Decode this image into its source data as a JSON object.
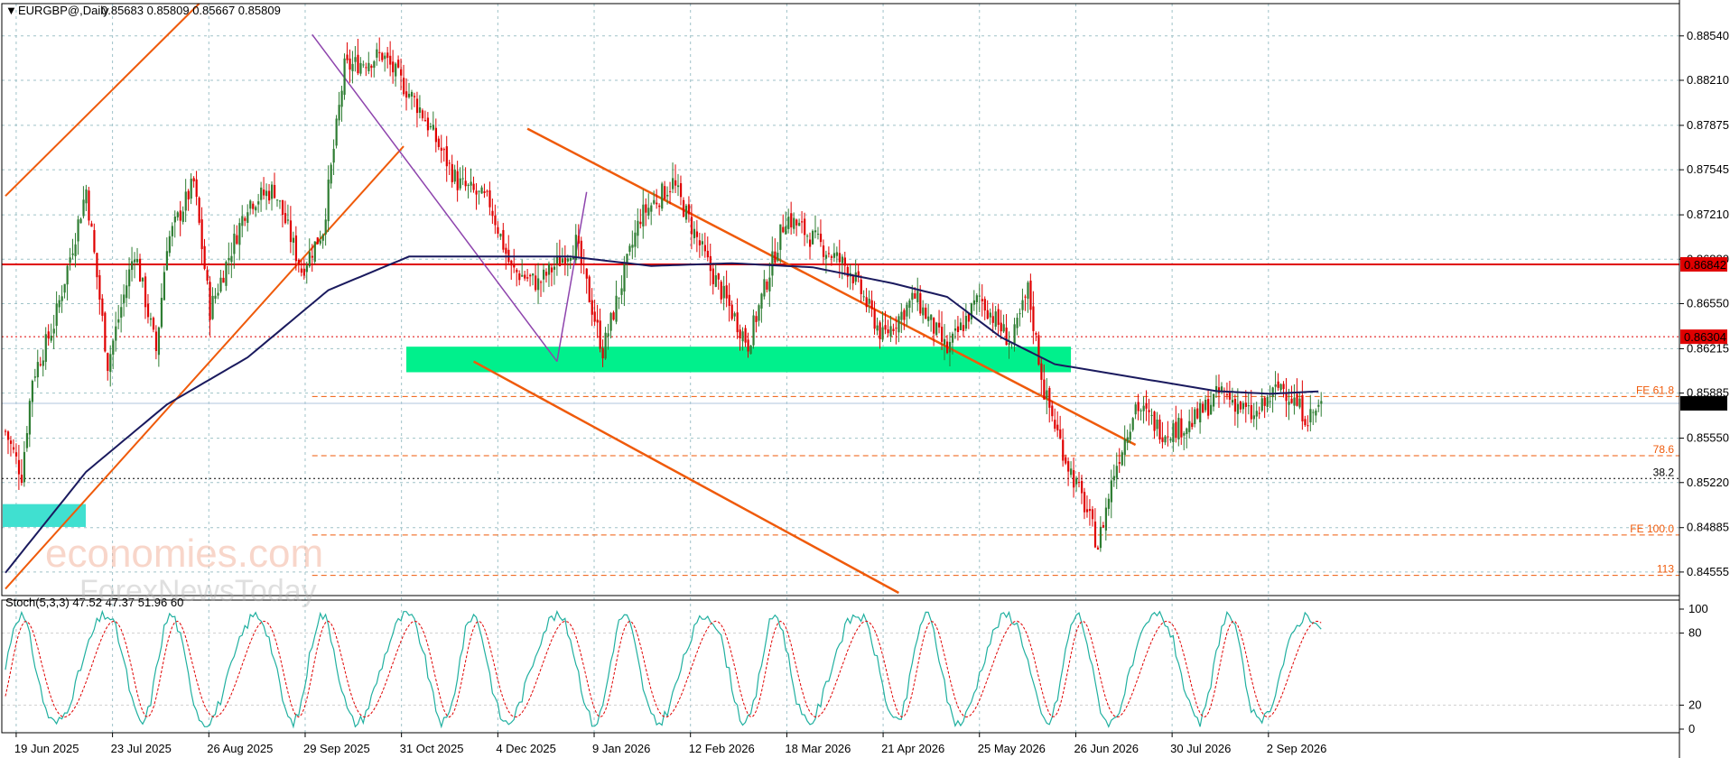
{
  "header": {
    "symbol": "EURGBP@,Daily",
    "ohlc": "0.85683 0.85809 0.85667 0.85809",
    "indicator": "Stoch(5,3,3) 47.52 47.37 51.96 60"
  },
  "watermark": {
    "brand": "economies.com",
    "sub": "ForexNewsToday"
  },
  "colors": {
    "bull": "#2e7d32",
    "bear": "#e00000",
    "ma": "#1a1a5e",
    "channel": "#ef5a0a",
    "purple": "#8e44ad",
    "zone": "#00f08c",
    "zone_left": "#40e0d0",
    "resistance": "#e00000",
    "fib": "#ef5a0a",
    "grid": "#9fc2c8",
    "stoch_main": "#20b0a0",
    "stoch_signal": "#e00000"
  },
  "chart_data": [
    {
      "type": "candlestick",
      "title": "EURGBP@,Daily",
      "ylim": [
        0.8438,
        0.8878
      ],
      "y_ticks": [
        "0.88540",
        "0.88210",
        "0.87875",
        "0.87545",
        "0.87210",
        "0.86880",
        "0.86550",
        "0.86215",
        "0.85885",
        "0.85550",
        "0.85220",
        "0.84885",
        "0.84555"
      ],
      "x_ticks": [
        "19 Jun 2025",
        "23 Jul 2025",
        "26 Aug 2025",
        "29 Sep 2025",
        "31 Oct 2025",
        "4 Dec 2025",
        "9 Jan 2026",
        "12 Feb 2026",
        "18 Mar 2026",
        "21 Apr 2026",
        "25 May 2026",
        "26 Jun 2026",
        "30 Jul 2026",
        "2 Sep 2026"
      ],
      "series": [
        {
          "name": "Close",
          "anchors": [
            [
              0,
              0.856
            ],
            [
              6,
              0.8528
            ],
            [
              10,
              0.86
            ],
            [
              18,
              0.864
            ],
            [
              30,
              0.874
            ],
            [
              38,
              0.861
            ],
            [
              48,
              0.8695
            ],
            [
              56,
              0.862
            ],
            [
              60,
              0.87
            ],
            [
              70,
              0.8745
            ],
            [
              76,
              0.865
            ],
            [
              90,
              0.873
            ],
            [
              100,
              0.874
            ],
            [
              110,
              0.868
            ],
            [
              118,
              0.871
            ],
            [
              126,
              0.883
            ],
            [
              140,
              0.884
            ],
            [
              154,
              0.88
            ],
            [
              168,
              0.8745
            ],
            [
              180,
              0.873
            ],
            [
              188,
              0.868
            ],
            [
              198,
              0.867
            ],
            [
              212,
              0.87
            ],
            [
              222,
              0.862
            ],
            [
              236,
              0.872
            ],
            [
              248,
              0.8745
            ],
            [
              262,
              0.868
            ],
            [
              276,
              0.8625
            ],
            [
              290,
              0.872
            ],
            [
              302,
              0.87
            ],
            [
              314,
              0.868
            ],
            [
              326,
              0.863
            ],
            [
              338,
              0.866
            ],
            [
              350,
              0.862
            ],
            [
              362,
              0.866
            ],
            [
              374,
              0.8625
            ],
            [
              380,
              0.8665
            ],
            [
              386,
              0.859
            ],
            [
              394,
              0.854
            ],
            [
              402,
              0.85
            ],
            [
              406,
              0.8475
            ],
            [
              412,
              0.853
            ],
            [
              420,
              0.858
            ],
            [
              430,
              0.856
            ],
            [
              440,
              0.8565
            ],
            [
              452,
              0.859
            ],
            [
              464,
              0.857
            ],
            [
              474,
              0.8595
            ],
            [
              484,
              0.857
            ],
            [
              490,
              0.8581
            ]
          ]
        },
        {
          "name": "MA",
          "anchors": [
            [
              0,
              0.8455
            ],
            [
              30,
              0.853
            ],
            [
              60,
              0.858
            ],
            [
              90,
              0.8615
            ],
            [
              120,
              0.8665
            ],
            [
              150,
              0.869
            ],
            [
              180,
              0.869
            ],
            [
              210,
              0.869
            ],
            [
              240,
              0.8683
            ],
            [
              270,
              0.8685
            ],
            [
              300,
              0.8682
            ],
            [
              330,
              0.867
            ],
            [
              350,
              0.866
            ],
            [
              370,
              0.863
            ],
            [
              390,
              0.861
            ],
            [
              420,
              0.86
            ],
            [
              450,
              0.859
            ],
            [
              470,
              0.8588
            ],
            [
              490,
              0.859
            ]
          ]
        }
      ],
      "levels": {
        "resistance": 0.86842,
        "dotted_red": 0.86304,
        "last_price": 0.85809,
        "dotted_black": 0.8525
      },
      "fib_labels": [
        {
          "label": "FE 61.8",
          "value": 0.8586
        },
        {
          "label": "78.6",
          "value": 0.8542
        },
        {
          "label": "38.2",
          "value": 0.8525
        },
        {
          "label": "FE 100.0",
          "value": 0.8483
        },
        {
          "label": "113",
          "value": 0.8453
        }
      ],
      "support_zone": [
        0.8604,
        0.8623
      ]
    },
    {
      "type": "line",
      "title": "Stoch(5,3,3)",
      "ylim": [
        0,
        100
      ],
      "y_ticks": [
        "100",
        "80",
        "20",
        "0"
      ],
      "series": [
        {
          "name": "%K",
          "cycle_period": 28,
          "last": 47.52
        },
        {
          "name": "%D",
          "cycle_period": 28,
          "last": 51.96
        }
      ]
    }
  ]
}
